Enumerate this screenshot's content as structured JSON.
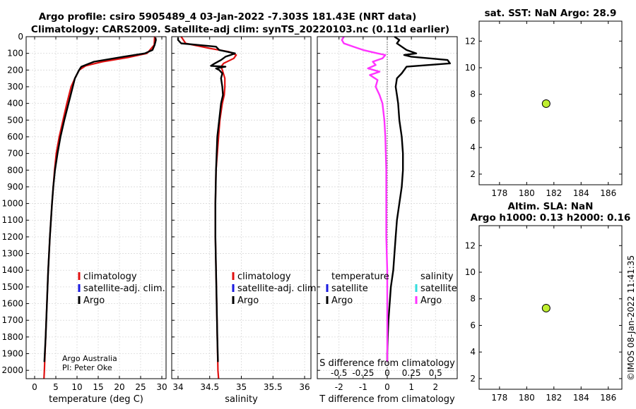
{
  "title": {
    "line1": "Argo profile: csiro 5905489_4 03-Jan-2022 -7.303S 181.43E (NRT data)",
    "line2": "Climatology: CARS2009. Satellite-adj clim: synTS_20220103.nc (0.11d earlier)"
  },
  "credit": {
    "line1": "Argo Australia",
    "line2": "PI: Peter Oke"
  },
  "timestamp": "©IMOS 08-Jan-2022 11:41:35",
  "colors": {
    "climatology": "#e01010",
    "satellite": "#1a1ae0",
    "argo": "#000000",
    "salinity_argo": "#ff33ff",
    "salinity_sat": "#33dddd",
    "marker": "#bfef2f"
  },
  "chart_data": [
    {
      "type": "line",
      "name": "temperature",
      "xlabel": "temperature (deg C)",
      "xlim": [
        -2,
        31
      ],
      "ylim": [
        2050,
        0
      ],
      "xticks": [
        "0",
        "5",
        "10",
        "15",
        "20",
        "25",
        "30"
      ],
      "xtick_values": [
        0,
        5,
        10,
        15,
        20,
        25,
        30
      ],
      "yticks": [
        "0",
        "100",
        "200",
        "300",
        "400",
        "500",
        "600",
        "700",
        "800",
        "900",
        "1000",
        "1100",
        "1200",
        "1300",
        "1400",
        "1500",
        "1600",
        "1700",
        "1800",
        "1900",
        "2000"
      ],
      "ytick_values": [
        0,
        100,
        200,
        300,
        400,
        500,
        600,
        700,
        800,
        900,
        1000,
        1100,
        1200,
        1300,
        1400,
        1500,
        1600,
        1700,
        1800,
        1900,
        2000
      ],
      "legend": [
        "climatology",
        "satellite-adj. clim.",
        "Argo"
      ],
      "series": [
        {
          "name": "climatology",
          "depth": [
            0,
            50,
            100,
            125,
            150,
            175,
            200,
            250,
            300,
            400,
            500,
            600,
            700,
            800,
            900,
            1000,
            1200,
            1400,
            1600,
            1800,
            2000,
            2050
          ],
          "values": [
            28.3,
            28.2,
            26.5,
            22,
            16,
            12,
            10.5,
            9.5,
            8.6,
            7.6,
            6.7,
            5.8,
            5.1,
            4.7,
            4.4,
            4.1,
            3.6,
            3.2,
            2.9,
            2.6,
            2.3,
            2.2
          ]
        },
        {
          "name": "Argo",
          "depth": [
            5,
            20,
            50,
            80,
            100,
            120,
            150,
            180,
            200,
            250,
            300,
            400,
            500,
            600,
            700,
            800,
            900,
            1000,
            1200,
            1400,
            1600,
            1800,
            1950
          ],
          "values": [
            28.5,
            28.6,
            28.3,
            27.8,
            26.0,
            21.0,
            14.0,
            11.0,
            10.5,
            9.5,
            9.0,
            8.0,
            7.0,
            6.1,
            5.4,
            4.8,
            4.4,
            4.1,
            3.6,
            3.2,
            2.9,
            2.6,
            2.3
          ]
        }
      ]
    },
    {
      "type": "line",
      "name": "salinity",
      "xlabel": "salinity",
      "xlim": [
        33.9,
        36.1
      ],
      "ylim": [
        2050,
        0
      ],
      "xticks": [
        "34",
        "34.5",
        "35",
        "35.5",
        "36"
      ],
      "xtick_values": [
        34,
        34.5,
        35,
        35.5,
        36
      ],
      "legend": [
        "climatology",
        "satellite-adj. clim.",
        "Argo"
      ],
      "series": [
        {
          "name": "climatology",
          "depth": [
            0,
            40,
            70,
            90,
            110,
            130,
            160,
            180,
            200,
            250,
            300,
            350,
            400,
            500,
            600,
            800,
            1000,
            1200,
            1400,
            1600,
            1800,
            2000,
            2050
          ],
          "values": [
            34.05,
            34.12,
            34.5,
            34.8,
            34.92,
            34.88,
            34.72,
            34.68,
            34.7,
            34.74,
            34.74,
            34.73,
            34.7,
            34.66,
            34.64,
            34.6,
            34.59,
            34.59,
            34.6,
            34.61,
            34.62,
            34.63,
            34.64
          ]
        },
        {
          "name": "Argo",
          "depth": [
            5,
            20,
            40,
            60,
            80,
            100,
            110,
            120,
            140,
            160,
            175,
            180,
            190,
            200,
            220,
            250,
            300,
            350,
            400,
            500,
            600,
            800,
            1000,
            1200,
            1400,
            1600,
            1800,
            1950
          ],
          "values": [
            34.0,
            34.0,
            34.05,
            34.6,
            34.65,
            34.9,
            34.83,
            34.75,
            34.68,
            34.58,
            34.52,
            34.75,
            34.6,
            34.65,
            34.7,
            34.68,
            34.7,
            34.71,
            34.68,
            34.65,
            34.62,
            34.6,
            34.59,
            34.59,
            34.6,
            34.61,
            34.62,
            34.63
          ]
        }
      ]
    },
    {
      "type": "line",
      "name": "difference",
      "xlabel": "T difference from climatology",
      "xlabel_top": "S difference from climatology",
      "xlim": [
        -2.9,
        2.9
      ],
      "ylim": [
        2050,
        0
      ],
      "xticks": [
        "-2",
        "-1",
        "0",
        "1",
        "2"
      ],
      "xtick_values": [
        -2,
        -1,
        0,
        1,
        2
      ],
      "xticks_top": [
        "-0.5",
        "-0.25",
        "0",
        "0.25",
        "0.5"
      ],
      "xtick_top_values": [
        -0.5,
        -0.25,
        0,
        0.25,
        0.5
      ],
      "legend_titles": [
        "temperature",
        "salinity"
      ],
      "legend_t": [
        "satellite",
        "Argo"
      ],
      "legend_s": [
        "satellite",
        "Argo"
      ],
      "series": [
        {
          "name": "T difference Argo",
          "depth": [
            0,
            20,
            40,
            60,
            80,
            100,
            110,
            120,
            140,
            160,
            180,
            200,
            220,
            250,
            300,
            350,
            400,
            500,
            600,
            700,
            800,
            900,
            1000,
            1100,
            1200,
            1300,
            1400,
            1500,
            1600,
            1700,
            1800,
            1900,
            1950
          ],
          "values": [
            0.3,
            0.5,
            0.4,
            0.6,
            0.8,
            1.2,
            0.7,
            1.0,
            2.5,
            2.6,
            0.8,
            0.7,
            0.6,
            0.4,
            0.35,
            0.4,
            0.45,
            0.5,
            0.6,
            0.65,
            0.65,
            0.6,
            0.5,
            0.4,
            0.35,
            0.3,
            0.25,
            0.15,
            0.1,
            0.05,
            0.02,
            0.0,
            0.0
          ]
        },
        {
          "name": "S difference Argo",
          "depth": [
            0,
            20,
            40,
            60,
            80,
            100,
            110,
            130,
            150,
            170,
            190,
            210,
            230,
            260,
            300,
            350,
            400,
            500,
            600,
            800,
            1000,
            1200,
            1400,
            1600,
            1800,
            1950
          ],
          "values": [
            -0.45,
            -0.47,
            -0.45,
            -0.35,
            -0.25,
            -0.1,
            -0.02,
            -0.05,
            -0.15,
            -0.12,
            -0.2,
            -0.08,
            -0.18,
            -0.1,
            -0.12,
            -0.08,
            -0.05,
            -0.03,
            -0.02,
            -0.01,
            -0.01,
            -0.01,
            0.0,
            0.0,
            0.0,
            0.0
          ]
        }
      ]
    },
    {
      "type": "scatter",
      "name": "sst",
      "title": "sat. SST: NaN Argo: 28.9",
      "xlim": [
        176.5,
        187
      ],
      "ylim": [
        1.2,
        13.5
      ],
      "xticks": [
        "178",
        "180",
        "182",
        "184",
        "186"
      ],
      "xtick_values": [
        178,
        180,
        182,
        184,
        186
      ],
      "yticks": [
        "2",
        "4",
        "6",
        "8",
        "10",
        "12"
      ],
      "ytick_values": [
        2,
        4,
        6,
        8,
        10,
        12
      ],
      "x": [
        181.43
      ],
      "y": [
        7.3
      ]
    },
    {
      "type": "scatter",
      "name": "sla",
      "title": "Altim. SLA: NaN",
      "title2": "Argo h1000: 0.13 h2000: 0.16",
      "xlim": [
        176.5,
        187
      ],
      "ylim": [
        1.2,
        13.5
      ],
      "xticks": [
        "178",
        "180",
        "182",
        "184",
        "186"
      ],
      "xtick_values": [
        178,
        180,
        182,
        184,
        186
      ],
      "yticks": [
        "2",
        "4",
        "6",
        "8",
        "10",
        "12"
      ],
      "ytick_values": [
        2,
        4,
        6,
        8,
        10,
        12
      ],
      "x": [
        181.43
      ],
      "y": [
        7.3
      ]
    }
  ]
}
